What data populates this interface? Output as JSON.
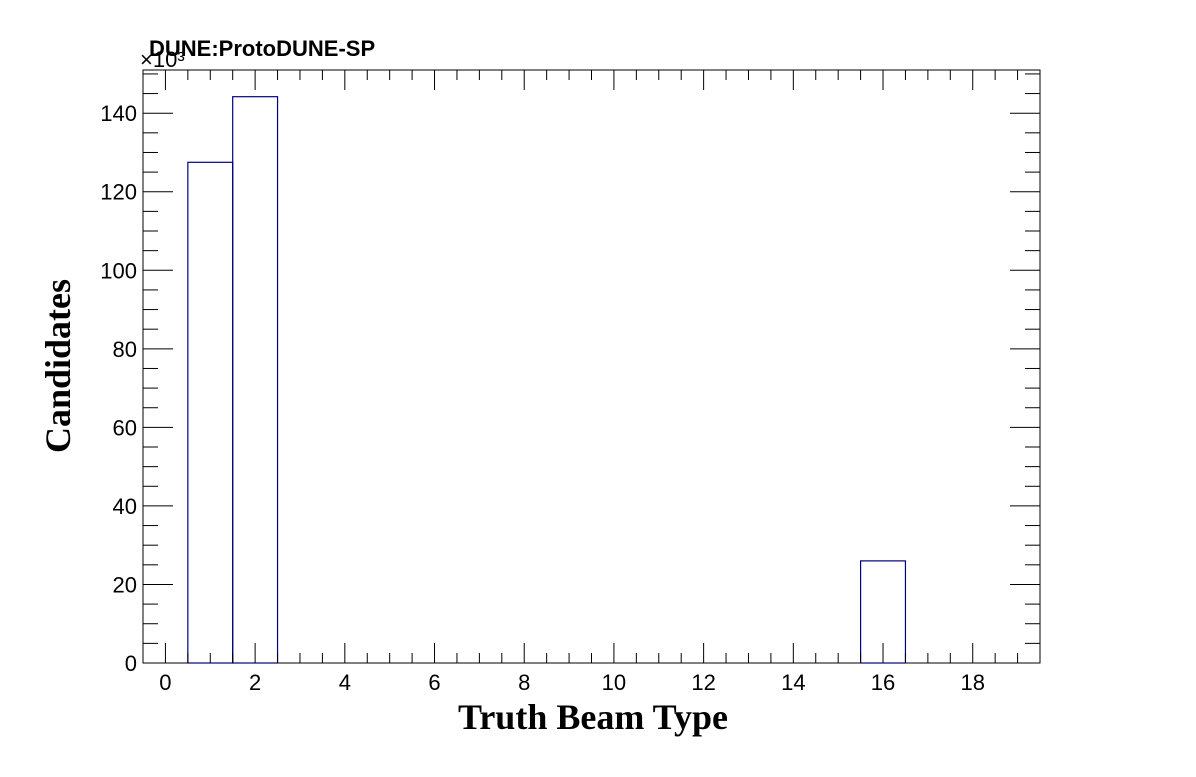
{
  "chart_data": {
    "type": "bar",
    "style": "step-histogram",
    "title": "DUNE:ProtoDUNE-SP",
    "xlabel": "Truth Beam Type",
    "ylabel": "Candidates",
    "y_multiplier_label": "×10³",
    "xlim": [
      -0.5,
      19.5
    ],
    "ylim": [
      0,
      151
    ],
    "x_ticks": [
      0,
      2,
      4,
      6,
      8,
      10,
      12,
      14,
      16,
      18
    ],
    "y_ticks": [
      0,
      20,
      40,
      60,
      80,
      100,
      120,
      140
    ],
    "bins": [
      {
        "x": 1,
        "value": 127.5
      },
      {
        "x": 2,
        "value": 144.2
      },
      {
        "x": 16,
        "value": 26.0
      }
    ],
    "bin_width": 1,
    "line_color": "#000080",
    "grid": false,
    "legend": "none"
  }
}
